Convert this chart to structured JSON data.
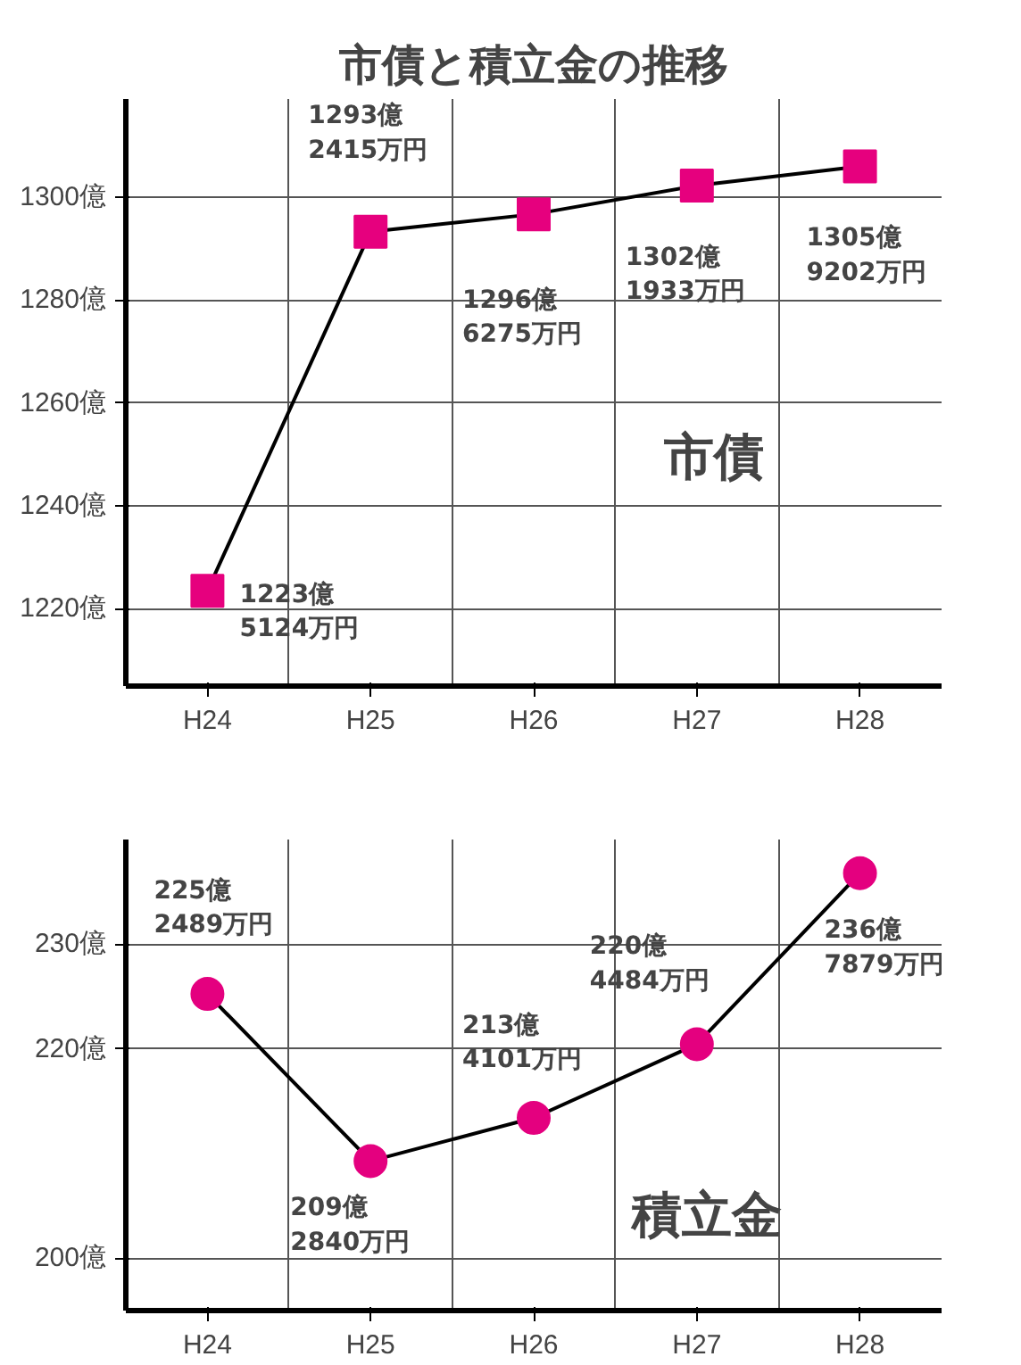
{
  "chart_data": [
    {
      "type": "line",
      "title": "市債と積立金の推移",
      "categories": [
        "H24",
        "H25",
        "H26",
        "H27",
        "H28"
      ],
      "ylim": [
        1205,
        1319
      ],
      "yticks": [
        {
          "value": 1220,
          "label": "1220億"
        },
        {
          "value": 1240,
          "label": "1240億"
        },
        {
          "value": 1260,
          "label": "1260億"
        },
        {
          "value": 1280,
          "label": "1280億"
        },
        {
          "value": 1300,
          "label": "1300億"
        }
      ],
      "grid": true,
      "marker": "square",
      "legend": false,
      "series": [
        {
          "name": "市債",
          "color": "#e6007e",
          "values": [
            1223.5124,
            1293.2415,
            1296.6275,
            1302.1933,
            1305.9202
          ]
        }
      ],
      "annotations": [
        {
          "text": "1223億\n5124万円",
          "x": "H24",
          "y": 1223.5124
        },
        {
          "text": "1293億\n2415万円",
          "x": "H25",
          "y": 1293.2415
        },
        {
          "text": "1296億\n6275万円",
          "x": "H26",
          "y": 1296.6275
        },
        {
          "text": "1302億\n1933万円",
          "x": "H27",
          "y": 1302.1933
        },
        {
          "text": "1305億\n9202万円",
          "x": "H28",
          "y": 1305.9202
        }
      ]
    },
    {
      "type": "line",
      "categories": [
        "H24",
        "H25",
        "H26",
        "H27",
        "H28"
      ],
      "ylim": [
        195,
        240
      ],
      "yticks": [
        {
          "value": 200,
          "label": "200億"
        },
        {
          "value": 220,
          "label": "220億"
        },
        {
          "value": 230,
          "label": "230億"
        }
      ],
      "grid": true,
      "marker": "circle",
      "legend": false,
      "series": [
        {
          "name": "積立金",
          "color": "#e4007f",
          "values": [
            225.2489,
            209.284,
            213.4101,
            220.4484,
            236.7879
          ]
        }
      ],
      "annotations": [
        {
          "text": "225億\n2489万円",
          "x": "H24",
          "y": 225.2489
        },
        {
          "text": "209億\n2840万円",
          "x": "H25",
          "y": 209.284
        },
        {
          "text": "213億\n4101万円",
          "x": "H26",
          "y": 213.4101
        },
        {
          "text": "220億\n4484万円",
          "x": "H27",
          "y": 220.4484
        },
        {
          "text": "236億\n7879万円",
          "x": "H28",
          "y": 236.7879
        }
      ]
    }
  ]
}
